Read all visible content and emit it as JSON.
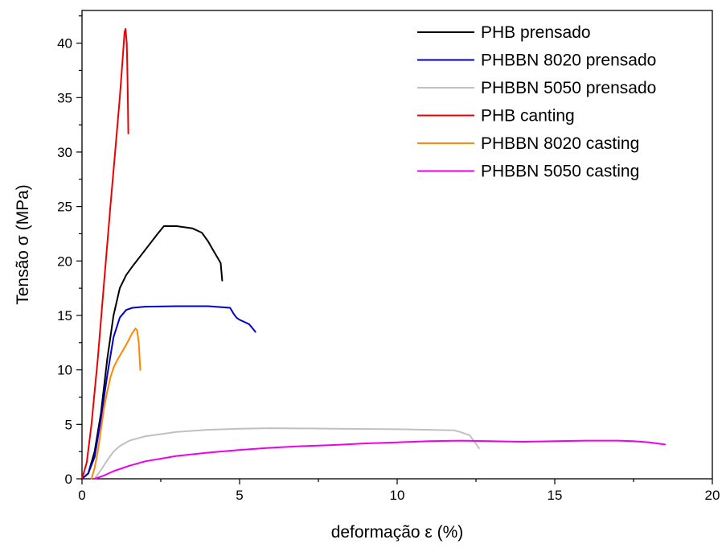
{
  "chart_data": {
    "type": "line",
    "xlabel": "deformação ε (%)",
    "ylabel": "Tensão σ (MPa)",
    "xlim": [
      0,
      20
    ],
    "ylim": [
      0,
      43
    ],
    "xticks": [
      0,
      5,
      10,
      15,
      20
    ],
    "yticks": [
      0,
      5,
      10,
      15,
      20,
      25,
      30,
      35,
      40
    ],
    "grid": false,
    "legend_position": "top-right",
    "series": [
      {
        "name": "PHB prensado",
        "color": "#000000",
        "x": [
          0,
          0.2,
          0.4,
          0.6,
          0.8,
          1.0,
          1.2,
          1.4,
          1.6,
          2.0,
          2.4,
          2.6,
          3.0,
          3.5,
          3.8,
          4.0,
          4.1,
          4.3,
          4.4,
          4.45
        ],
        "y": [
          0,
          0.5,
          2.5,
          6,
          11,
          15,
          17.5,
          18.7,
          19.5,
          21,
          22.5,
          23.2,
          23.2,
          23.0,
          22.6,
          21.8,
          21.3,
          20.3,
          19.8,
          18.2
        ]
      },
      {
        "name": "PHBBN 8020 prensado",
        "color": "#0000cc",
        "x": [
          0,
          0.2,
          0.4,
          0.6,
          0.8,
          1.0,
          1.2,
          1.4,
          1.6,
          2.0,
          3.0,
          4.0,
          4.7,
          4.8,
          4.9,
          5.0,
          5.3,
          5.5
        ],
        "y": [
          0,
          0.5,
          2.0,
          5.5,
          9.5,
          13,
          14.8,
          15.5,
          15.7,
          15.8,
          15.85,
          15.85,
          15.7,
          15.2,
          14.8,
          14.6,
          14.2,
          13.5
        ]
      },
      {
        "name": "PHBBN 5050 prensado",
        "color": "#c0c0c0",
        "x": [
          0.4,
          0.6,
          0.8,
          1.0,
          1.2,
          1.5,
          2.0,
          2.5,
          3.0,
          4.0,
          5.0,
          6.0,
          8.0,
          10.0,
          11.0,
          11.8,
          12.0,
          12.3,
          12.5,
          12.6
        ],
        "y": [
          0,
          0.8,
          1.7,
          2.5,
          3.0,
          3.5,
          3.9,
          4.1,
          4.3,
          4.5,
          4.6,
          4.65,
          4.6,
          4.55,
          4.5,
          4.45,
          4.3,
          4.0,
          3.2,
          2.8
        ]
      },
      {
        "name": "PHB canting",
        "color": "#ee0000",
        "x": [
          0,
          0.15,
          0.3,
          0.5,
          0.7,
          0.9,
          1.05,
          1.2,
          1.3,
          1.35,
          1.38,
          1.42,
          1.45,
          1.47
        ],
        "y": [
          0,
          1.5,
          5,
          11,
          18,
          25,
          30,
          35,
          39,
          41,
          41.3,
          40,
          36,
          31.7
        ]
      },
      {
        "name": "PHBBN 8020 casting",
        "color": "#ff8800",
        "x": [
          0.3,
          0.4,
          0.5,
          0.6,
          0.7,
          0.8,
          0.9,
          1.0,
          1.1,
          1.2,
          1.4,
          1.6,
          1.7,
          1.75,
          1.8,
          1.85
        ],
        "y": [
          0,
          1.0,
          2.5,
          4.5,
          6.5,
          8.0,
          9.3,
          10.2,
          10.8,
          11.3,
          12.3,
          13.4,
          13.8,
          13.6,
          12.5,
          10.0
        ]
      },
      {
        "name": "PHBBN 5050 casting",
        "color": "#ee00ee",
        "x": [
          0.4,
          0.7,
          1.0,
          1.5,
          2.0,
          3.0,
          4.0,
          5.0,
          6.0,
          7.0,
          8.0,
          9.0,
          10.0,
          11.0,
          12.0,
          13.0,
          14.0,
          15.0,
          16.0,
          17.0,
          17.5,
          18.0,
          18.5
        ],
        "y": [
          0,
          0.3,
          0.7,
          1.2,
          1.6,
          2.1,
          2.4,
          2.65,
          2.85,
          3.0,
          3.1,
          3.25,
          3.35,
          3.45,
          3.5,
          3.45,
          3.4,
          3.45,
          3.5,
          3.5,
          3.45,
          3.35,
          3.15
        ]
      }
    ]
  }
}
